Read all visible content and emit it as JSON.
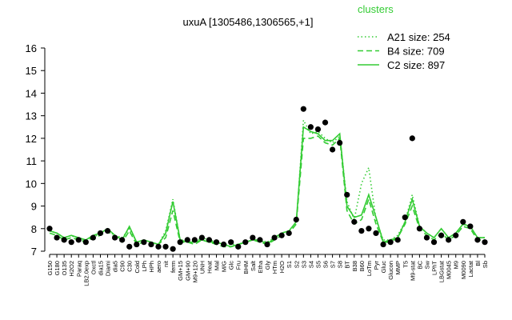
{
  "chart_data": {
    "type": "line",
    "title": "uxuA [1305486,1306565,+1]",
    "legend_title": "clusters",
    "legend_color": "#33cc33",
    "categories": [
      "G150",
      "G180",
      "O135",
      "H2O2",
      "Paraq",
      "LB2.0exp",
      "Oxctl",
      "dia15",
      "Diami",
      "dia5",
      "C90",
      "C30",
      "Cold",
      "LPh",
      "HPh",
      "aero",
      "nit",
      "ferm",
      "GM+15",
      "GM+90",
      "M9+120",
      "UNH",
      "Heat",
      "Mal",
      "M/G",
      "Glc",
      "Fru",
      "BHM",
      "Salt",
      "Etha",
      "Gly",
      "HTm",
      "H2O",
      "S1",
      "S2",
      "S3",
      "S4",
      "S5",
      "S6",
      "S7",
      "S8",
      "BT",
      "B38",
      "B60",
      "LoTm",
      "Pyr",
      "Gluc",
      "Glucon",
      "MMP",
      "T5",
      "M9-stat",
      "BC",
      "Sw",
      "LPhT",
      "LBGstat",
      "M0045",
      "M9",
      "M0090",
      "Lactat",
      "Bl",
      "Sb"
    ],
    "series": [
      {
        "name": "A21 size: 254",
        "color": "#33cc33",
        "dash": "dotted",
        "values": [
          7.9,
          7.8,
          7.6,
          7.7,
          7.5,
          7.5,
          7.6,
          7.8,
          7.9,
          7.7,
          7.6,
          8.0,
          7.4,
          7.5,
          7.4,
          7.3,
          7.9,
          9.3,
          7.5,
          7.5,
          7.4,
          7.6,
          7.5,
          7.4,
          7.3,
          7.3,
          7.3,
          7.4,
          7.5,
          7.5,
          7.4,
          7.6,
          7.8,
          7.9,
          8.2,
          12.8,
          12.2,
          12.3,
          12.0,
          11.8,
          12.1,
          9.2,
          8.4,
          10.0,
          10.7,
          8.4,
          7.5,
          7.5,
          7.7,
          8.3,
          9.5,
          8.1,
          7.8,
          7.6,
          8.0,
          7.6,
          7.8,
          8.2,
          8.1,
          7.6,
          7.6
        ]
      },
      {
        "name": "B4 size: 709",
        "color": "#33cc33",
        "dash": "dashed",
        "values": [
          7.8,
          7.7,
          7.5,
          7.6,
          7.5,
          7.4,
          7.6,
          7.7,
          7.9,
          7.6,
          7.4,
          7.9,
          7.3,
          7.4,
          7.3,
          7.3,
          7.6,
          8.8,
          7.4,
          7.4,
          7.3,
          7.5,
          7.4,
          7.3,
          7.2,
          7.2,
          7.3,
          7.4,
          7.5,
          7.4,
          7.3,
          7.5,
          7.7,
          7.8,
          8.2,
          12.0,
          12.0,
          12.1,
          11.8,
          11.7,
          12.0,
          8.8,
          8.2,
          8.4,
          9.3,
          8.2,
          7.4,
          7.4,
          7.6,
          8.2,
          9.0,
          8.0,
          7.7,
          7.5,
          7.8,
          7.5,
          7.7,
          8.1,
          8.0,
          7.5,
          7.5
        ]
      },
      {
        "name": "C2 size: 897",
        "color": "#33cc33",
        "dash": "solid",
        "values": [
          7.9,
          7.8,
          7.6,
          7.7,
          7.6,
          7.5,
          7.7,
          7.8,
          8.0,
          7.7,
          7.5,
          8.1,
          7.4,
          7.5,
          7.4,
          7.3,
          7.8,
          9.2,
          7.5,
          7.4,
          7.4,
          7.5,
          7.4,
          7.4,
          7.3,
          7.2,
          7.3,
          7.4,
          7.5,
          7.5,
          7.3,
          7.6,
          7.8,
          7.9,
          8.3,
          12.5,
          12.3,
          12.2,
          11.9,
          11.9,
          12.2,
          9.0,
          8.5,
          8.6,
          9.5,
          8.5,
          7.4,
          7.5,
          7.6,
          8.3,
          9.3,
          8.1,
          7.8,
          7.6,
          8.0,
          7.6,
          7.8,
          8.2,
          8.1,
          7.6,
          7.6
        ]
      },
      {
        "color": "#000000",
        "marker": "circle",
        "values": [
          8.0,
          7.6,
          7.5,
          7.4,
          7.5,
          7.4,
          7.6,
          7.8,
          7.9,
          7.6,
          7.5,
          7.2,
          7.3,
          7.4,
          7.3,
          7.2,
          7.2,
          7.1,
          7.4,
          7.5,
          7.5,
          7.6,
          7.5,
          7.4,
          7.3,
          7.4,
          7.2,
          7.4,
          7.6,
          7.5,
          7.3,
          7.6,
          7.7,
          7.8,
          8.4,
          13.3,
          12.5,
          12.4,
          12.7,
          11.5,
          11.8,
          9.5,
          8.3,
          7.9,
          8.0,
          7.8,
          7.3,
          7.4,
          7.5,
          8.5,
          12.0,
          8.0,
          7.6,
          7.4,
          7.7,
          7.5,
          7.7,
          8.3,
          8.1,
          7.5,
          7.4
        ]
      }
    ],
    "ylim": [
      7,
      16
    ],
    "yticks": [
      7,
      8,
      9,
      10,
      11,
      12,
      13,
      14,
      15,
      16
    ]
  }
}
